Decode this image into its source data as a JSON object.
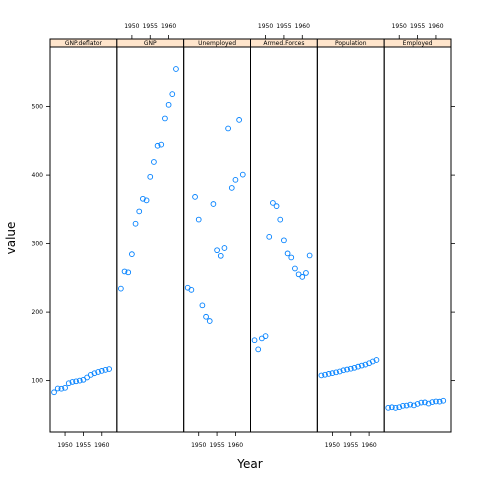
{
  "chart_data": {
    "type": "scatter",
    "xlabel": "Year",
    "ylabel": "value",
    "xlim": [
      1945.9,
      1964.1
    ],
    "ylim": [
      25,
      587
    ],
    "x_ticks": [
      1950,
      1955,
      1960
    ],
    "y_ticks": [
      100,
      200,
      300,
      400,
      500
    ],
    "grid": false,
    "layout": "6 panels in a row, shared y axis, x tick labels alternate top/bottom",
    "colors": {
      "points": "#0080ff",
      "strip": "#ffe5cc",
      "axis": "#000000"
    },
    "x": [
      1947,
      1948,
      1949,
      1950,
      1951,
      1952,
      1953,
      1954,
      1955,
      1956,
      1957,
      1958,
      1959,
      1960,
      1961,
      1962
    ],
    "panels": [
      {
        "name": "GNP.deflator",
        "x_ticks_side": "bottom",
        "values": [
          83.0,
          88.5,
          88.2,
          89.5,
          96.2,
          98.1,
          99.0,
          100.0,
          101.2,
          104.6,
          108.4,
          110.8,
          112.6,
          114.2,
          115.7,
          116.9
        ]
      },
      {
        "name": "GNP",
        "x_ticks_side": "top",
        "values": [
          234.3,
          259.4,
          258.1,
          284.6,
          329.0,
          347.0,
          365.4,
          363.1,
          397.5,
          419.2,
          442.8,
          444.5,
          482.7,
          502.6,
          518.2,
          554.9
        ]
      },
      {
        "name": "Unemployed",
        "x_ticks_side": "bottom",
        "values": [
          235.6,
          232.5,
          368.2,
          335.1,
          209.9,
          193.2,
          187.0,
          357.8,
          290.4,
          282.2,
          293.6,
          468.1,
          381.3,
          393.1,
          480.6,
          400.7
        ]
      },
      {
        "name": "Armed.Forces",
        "x_ticks_side": "top",
        "values": [
          159.0,
          145.6,
          161.6,
          165.0,
          309.9,
          359.4,
          354.7,
          335.0,
          304.8,
          285.7,
          279.8,
          263.7,
          255.2,
          251.4,
          257.2,
          282.7
        ]
      },
      {
        "name": "Population",
        "x_ticks_side": "bottom",
        "values": [
          107.6,
          108.6,
          109.8,
          110.9,
          112.1,
          113.3,
          115.1,
          116.2,
          117.4,
          118.7,
          120.4,
          122.0,
          123.4,
          125.4,
          127.9,
          130.1
        ]
      },
      {
        "name": "Employed",
        "x_ticks_side": "top",
        "values": [
          60.3,
          61.1,
          60.2,
          61.2,
          63.2,
          63.6,
          65.0,
          63.8,
          66.0,
          67.9,
          68.2,
          66.5,
          68.7,
          69.6,
          69.3,
          70.6
        ]
      }
    ]
  }
}
